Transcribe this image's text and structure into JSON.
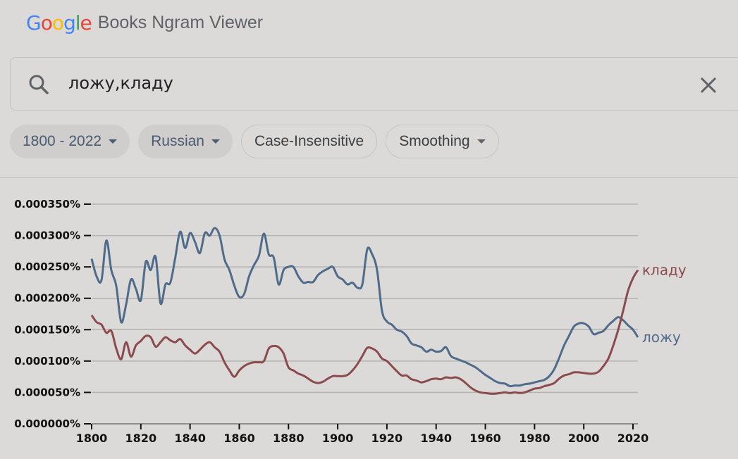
{
  "header": {
    "logo_letters": [
      {
        "char": "G",
        "color": "#4285f4"
      },
      {
        "char": "o",
        "color": "#ea4335"
      },
      {
        "char": "o",
        "color": "#fbbc05"
      },
      {
        "char": "g",
        "color": "#4285f4"
      },
      {
        "char": "l",
        "color": "#34a853"
      },
      {
        "char": "e",
        "color": "#ea4335"
      }
    ],
    "product_name": "Books Ngram Viewer"
  },
  "search": {
    "icon": "search-icon",
    "query": "ложу,кладу",
    "clear_icon": "close-icon"
  },
  "filters": {
    "year_range": "1800 - 2022",
    "corpus": "Russian",
    "case": "Case-Insensitive",
    "smoothing": "Smoothing"
  },
  "chart_data": {
    "type": "line",
    "title": "",
    "xlabel": "",
    "ylabel": "",
    "xlim": [
      1800,
      2022
    ],
    "ylim": [
      0,
      0.00035
    ],
    "grid": true,
    "y_ticks": [
      "0.000000%",
      "0.000050%",
      "0.000100%",
      "0.000150%",
      "0.000200%",
      "0.000250%",
      "0.000300%",
      "0.000350%"
    ],
    "y_tick_values": [
      0,
      5e-05,
      0.0001,
      0.00015,
      0.0002,
      0.00025,
      0.0003,
      0.00035
    ],
    "x_ticks": [
      "1800",
      "1820",
      "1840",
      "1860",
      "1880",
      "1900",
      "1920",
      "1940",
      "1960",
      "1980",
      "2000",
      "2020"
    ],
    "x_tick_values": [
      1800,
      1820,
      1840,
      1860,
      1880,
      1900,
      1920,
      1940,
      1960,
      1980,
      2000,
      2020
    ],
    "legend": "inline-right",
    "x": [
      1800,
      1802,
      1804,
      1806,
      1808,
      1810,
      1812,
      1814,
      1816,
      1818,
      1820,
      1822,
      1824,
      1826,
      1828,
      1830,
      1832,
      1834,
      1836,
      1838,
      1840,
      1842,
      1844,
      1846,
      1848,
      1850,
      1852,
      1854,
      1856,
      1858,
      1860,
      1862,
      1864,
      1866,
      1868,
      1870,
      1872,
      1874,
      1876,
      1878,
      1880,
      1882,
      1884,
      1886,
      1888,
      1890,
      1892,
      1894,
      1896,
      1898,
      1900,
      1902,
      1904,
      1906,
      1908,
      1910,
      1912,
      1914,
      1916,
      1918,
      1920,
      1922,
      1924,
      1926,
      1928,
      1930,
      1932,
      1934,
      1936,
      1938,
      1940,
      1942,
      1944,
      1946,
      1948,
      1950,
      1952,
      1954,
      1956,
      1958,
      1960,
      1962,
      1964,
      1966,
      1968,
      1970,
      1972,
      1974,
      1976,
      1978,
      1980,
      1982,
      1984,
      1986,
      1988,
      1990,
      1992,
      1994,
      1996,
      1998,
      2000,
      2002,
      2004,
      2006,
      2008,
      2010,
      2012,
      2014,
      2016,
      2018,
      2020,
      2022
    ],
    "series": [
      {
        "name": "ложу",
        "color": "#4f6b8a",
        "values": [
          0.000263,
          0.000235,
          0.000229,
          0.000292,
          0.000245,
          0.00022,
          0.000162,
          0.00019,
          0.00023,
          0.000215,
          0.000197,
          0.000258,
          0.000245,
          0.000266,
          0.000192,
          0.000222,
          0.000225,
          0.000265,
          0.000306,
          0.00028,
          0.000304,
          0.00029,
          0.000272,
          0.000304,
          0.0003,
          0.000312,
          0.0003,
          0.000262,
          0.000245,
          0.00022,
          0.000202,
          0.000207,
          0.000235,
          0.000253,
          0.000268,
          0.000303,
          0.00027,
          0.000265,
          0.000222,
          0.000245,
          0.00025,
          0.00025,
          0.000235,
          0.000225,
          0.000226,
          0.000226,
          0.000237,
          0.000243,
          0.000247,
          0.00025,
          0.000235,
          0.00023,
          0.000222,
          0.000225,
          0.000217,
          0.000222,
          0.000278,
          0.00027,
          0.000245,
          0.00018,
          0.000163,
          0.000158,
          0.00015,
          0.000147,
          0.00014,
          0.000128,
          0.000125,
          0.000122,
          0.000115,
          0.000118,
          0.000115,
          0.000116,
          0.000122,
          0.000108,
          0.000104,
          0.000101,
          9.8e-05,
          9.4e-05,
          9e-05,
          8.4e-05,
          7.8e-05,
          7.3e-05,
          6.8e-05,
          6.5e-05,
          6.4e-05,
          6e-05,
          6.1e-05,
          6.1e-05,
          6.3e-05,
          6.4e-05,
          6.6e-05,
          6.8e-05,
          7e-05,
          7.6e-05,
          8.7e-05,
          0.000105,
          0.000125,
          0.00014,
          0.000155,
          0.00016,
          0.00016,
          0.000155,
          0.000143,
          0.000145,
          0.000148,
          0.000157,
          0.000164,
          0.00017,
          0.000165,
          0.000157,
          0.00015,
          0.000138
        ]
      },
      {
        "name": "кладу",
        "color": "#8b4a4d",
        "values": [
          0.000173,
          0.000162,
          0.000158,
          0.000145,
          0.000148,
          0.00012,
          0.000103,
          0.00013,
          0.000107,
          0.000125,
          0.000132,
          0.00014,
          0.000138,
          0.000123,
          0.00013,
          0.000138,
          0.000133,
          0.00013,
          0.000135,
          0.000125,
          0.000118,
          0.000112,
          0.000118,
          0.000126,
          0.00013,
          0.000122,
          0.000115,
          9.8e-05,
          8.5e-05,
          7.5e-05,
          8.5e-05,
          9.2e-05,
          9.6e-05,
          9.8e-05,
          9.8e-05,
          0.0001,
          0.00012,
          0.000124,
          0.000122,
          0.000112,
          9e-05,
          8.5e-05,
          8e-05,
          7.7e-05,
          7.2e-05,
          6.7e-05,
          6.5e-05,
          6.7e-05,
          7.2e-05,
          7.6e-05,
          7.6e-05,
          7.6e-05,
          7.8e-05,
          8.5e-05,
          9.5e-05,
          0.000108,
          0.000121,
          0.00012,
          0.000115,
          0.000104,
          0.0001,
          9.2e-05,
          8.4e-05,
          7.7e-05,
          7.7e-05,
          7.1e-05,
          6.9e-05,
          6.6e-05,
          6.8e-05,
          7.1e-05,
          7.2e-05,
          7.1e-05,
          7.4e-05,
          7.3e-05,
          7.4e-05,
          7.1e-05,
          6.5e-05,
          5.8e-05,
          5.3e-05,
          5e-05,
          4.9e-05,
          4.8e-05,
          4.8e-05,
          4.9e-05,
          5e-05,
          4.9e-05,
          5e-05,
          4.9e-05,
          5e-05,
          5.3e-05,
          5.6e-05,
          5.7e-05,
          6e-05,
          6.2e-05,
          6.5e-05,
          7.2e-05,
          7.7e-05,
          7.9e-05,
          8.2e-05,
          8.2e-05,
          8.1e-05,
          8e-05,
          8e-05,
          8.3e-05,
          9.2e-05,
          0.000104,
          0.000125,
          0.00015,
          0.00018,
          0.000212,
          0.000232,
          0.000245
        ]
      }
    ]
  }
}
